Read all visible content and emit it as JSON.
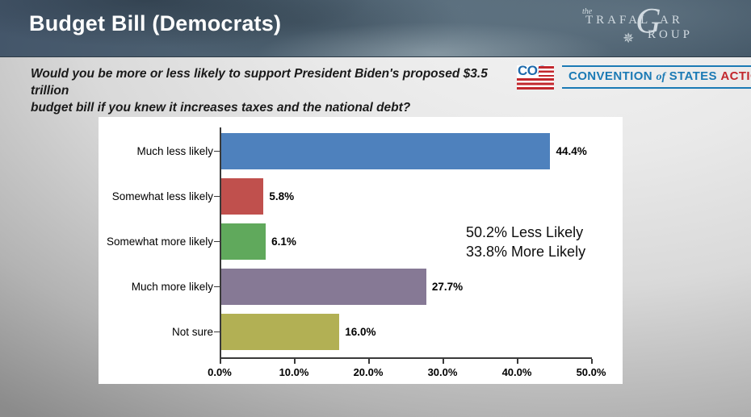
{
  "header": {
    "title": "Budget Bill (Democrats)",
    "trafalgar_logo": {
      "the": "the",
      "part1": "TRAFAL",
      "g": "G",
      "part2": "AR",
      "part3": "ROUP",
      "compass": "✵"
    }
  },
  "question": {
    "line1": "Would you be more or less likely to support President Biden's proposed $3.5 trillion",
    "line2": "budget bill if you knew it increases taxes and the national debt?"
  },
  "cos_logo": {
    "acronym": "COS",
    "word1": "CONVENTION",
    "word2": "of",
    "word3": "STATES",
    "word4": "ACTION",
    "blue": "#1b7ab5",
    "red": "#c2272d"
  },
  "chart_data": {
    "type": "bar",
    "orientation": "horizontal",
    "title": "",
    "categories": [
      "Much less likely",
      "Somewhat less likely",
      "Somewhat more likely",
      "Much more likely",
      "Not sure"
    ],
    "values": [
      44.4,
      5.8,
      6.1,
      27.7,
      16.0
    ],
    "value_labels": [
      "44.4%",
      "5.8%",
      "6.1%",
      "27.7%",
      "16.0%"
    ],
    "bar_colors": [
      "#4e81bd",
      "#c0504d",
      "#60a95c",
      "#867995",
      "#b2b054"
    ],
    "xlim": [
      0,
      50
    ],
    "x_ticks": [
      0,
      10,
      20,
      30,
      40,
      50
    ],
    "x_tick_labels": [
      "0.0%",
      "10.0%",
      "20.0%",
      "30.0%",
      "40.0%",
      "50.0%"
    ],
    "grid": false,
    "legend": "none",
    "annotation": {
      "line1": "50.2% Less Likely",
      "line2": "33.8% More Likely"
    }
  }
}
